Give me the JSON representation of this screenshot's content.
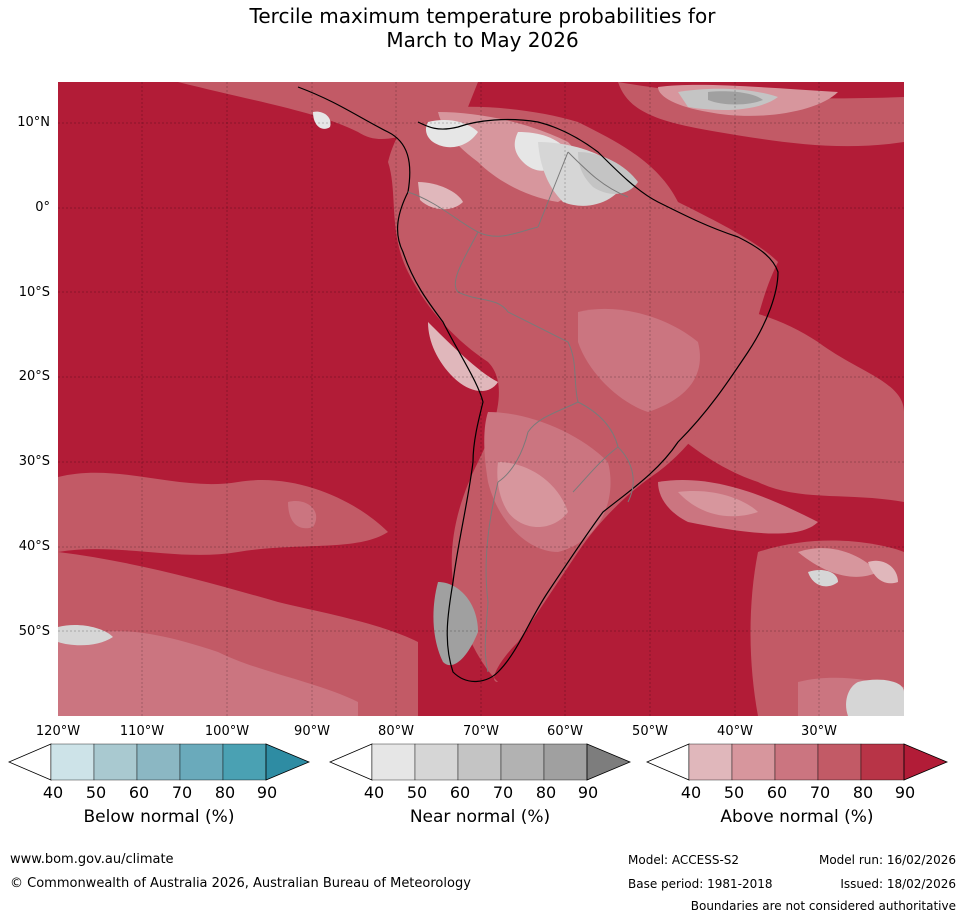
{
  "title": {
    "line1": "Tercile maximum temperature probabilities for",
    "line2": "March to May 2026"
  },
  "map": {
    "latitude_labels": [
      "10°N",
      "0°",
      "10°S",
      "20°S",
      "30°S",
      "40°S",
      "50°S"
    ],
    "longitude_labels": [
      "120°W",
      "110°W",
      "100°W",
      "90°W",
      "80°W",
      "70°W",
      "60°W",
      "50°W",
      "40°W",
      "30°W"
    ],
    "region": "South America and surrounding oceans"
  },
  "colorbars": [
    {
      "name": "below",
      "title": "Below normal (%)",
      "ticks": [
        "40",
        "50",
        "60",
        "70",
        "80",
        "90"
      ],
      "colors": [
        "#ffffff",
        "#cde3e8",
        "#a9c9d0",
        "#8bb7c3",
        "#6aaabb",
        "#4aa1b3",
        "#2e8ca3"
      ]
    },
    {
      "name": "near",
      "title": "Near normal (%)",
      "ticks": [
        "40",
        "50",
        "60",
        "70",
        "80",
        "90"
      ],
      "colors": [
        "#ffffff",
        "#e6e6e6",
        "#d6d6d6",
        "#c4c4c4",
        "#b2b2b2",
        "#a0a0a0",
        "#7d7d7d"
      ]
    },
    {
      "name": "above",
      "title": "Above normal (%)",
      "ticks": [
        "40",
        "50",
        "60",
        "70",
        "80",
        "90"
      ],
      "colors": [
        "#ffffff",
        "#e0b7bb",
        "#d7969d",
        "#cb7580",
        "#c25a66",
        "#b83447",
        "#b21c37"
      ]
    }
  ],
  "footer": {
    "website": "www.bom.gov.au/climate",
    "copyright": "© Commonwealth of Australia 2026, Australian Bureau of Meteorology",
    "model": "Model: ACCESS-S2",
    "base_period": "Base period: 1981-2018",
    "model_run": "Model run: 16/02/2026",
    "issued": "Issued: 18/02/2026",
    "disclaimer": "Boundaries are not considered authoritative"
  }
}
